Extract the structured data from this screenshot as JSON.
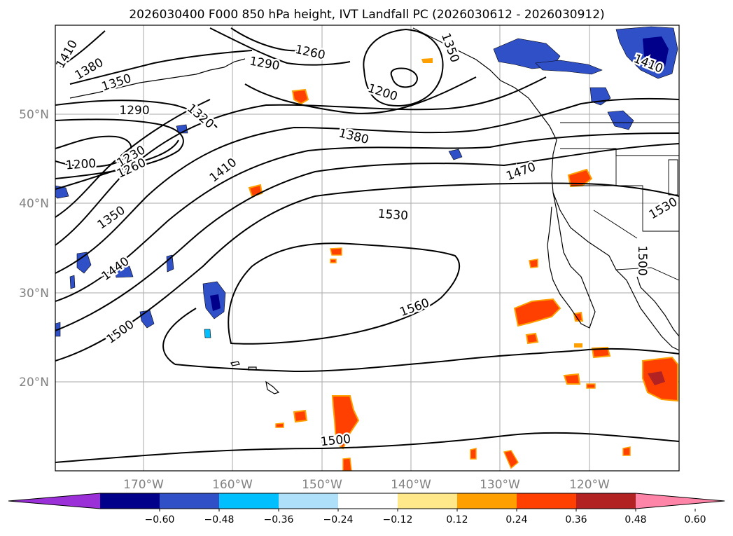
{
  "title": "2026030400 F000 850 hPa height, IVT Landfall PC (2026030612 - 2026030912)",
  "map": {
    "lat_ticks": [
      "50°N",
      "40°N",
      "30°N",
      "20°N"
    ],
    "lon_ticks": [
      "170°W",
      "160°W",
      "150°W",
      "140°W",
      "130°W",
      "120°W"
    ],
    "grid": true
  },
  "contours": {
    "labels": [
      "1410",
      "1380",
      "1350",
      "1290",
      "1320",
      "1200",
      "1230",
      "1260",
      "1290",
      "1260",
      "1200",
      "1350",
      "1380",
      "1410",
      "1470",
      "1350",
      "1530",
      "1440",
      "1500",
      "1560",
      "1530",
      "1500",
      "1410",
      "1500"
    ]
  },
  "colorbar": {
    "tick_labels": [
      "−0.60",
      "−0.48",
      "−0.36",
      "−0.24",
      "−0.12",
      "0.12",
      "0.24",
      "0.36",
      "0.48",
      "0.60"
    ],
    "colors": [
      "#9b30d8",
      "#00008b",
      "#3050c8",
      "#00bfff",
      "#aee0fa",
      "#ffffff",
      "#ffe88a",
      "#ffa000",
      "#ff4000",
      "#b22222",
      "#ff85a8"
    ]
  }
}
